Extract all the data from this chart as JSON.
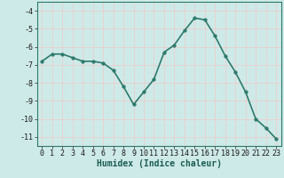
{
  "x": [
    0,
    1,
    2,
    3,
    4,
    5,
    6,
    7,
    8,
    9,
    10,
    11,
    12,
    13,
    14,
    15,
    16,
    17,
    18,
    19,
    20,
    21,
    22,
    23
  ],
  "y": [
    -6.8,
    -6.4,
    -6.4,
    -6.6,
    -6.8,
    -6.8,
    -6.9,
    -7.3,
    -8.2,
    -9.2,
    -8.5,
    -7.8,
    -6.3,
    -5.9,
    -5.1,
    -4.4,
    -4.5,
    -5.4,
    -6.5,
    -7.4,
    -8.5,
    -10.0,
    -10.5,
    -11.1
  ],
  "xlabel": "Humidex (Indice chaleur)",
  "ylim": [
    -11.5,
    -3.5
  ],
  "xlim": [
    -0.5,
    23.5
  ],
  "yticks": [
    -11,
    -10,
    -9,
    -8,
    -7,
    -6,
    -5,
    -4
  ],
  "xticks": [
    0,
    1,
    2,
    3,
    4,
    5,
    6,
    7,
    8,
    9,
    10,
    11,
    12,
    13,
    14,
    15,
    16,
    17,
    18,
    19,
    20,
    21,
    22,
    23
  ],
  "line_color": "#2d7a6c",
  "marker_color": "#2d7a6c",
  "bg_color": "#ceeae8",
  "grid_major_color": "#f0c8c8",
  "grid_minor_color": "#ceeae8",
  "tick_label_color": "#1a1a1a",
  "xlabel_color": "#1a5c52",
  "xlabel_fontsize": 7,
  "tick_fontsize": 6,
  "line_width": 1.2,
  "marker_size": 2.5
}
